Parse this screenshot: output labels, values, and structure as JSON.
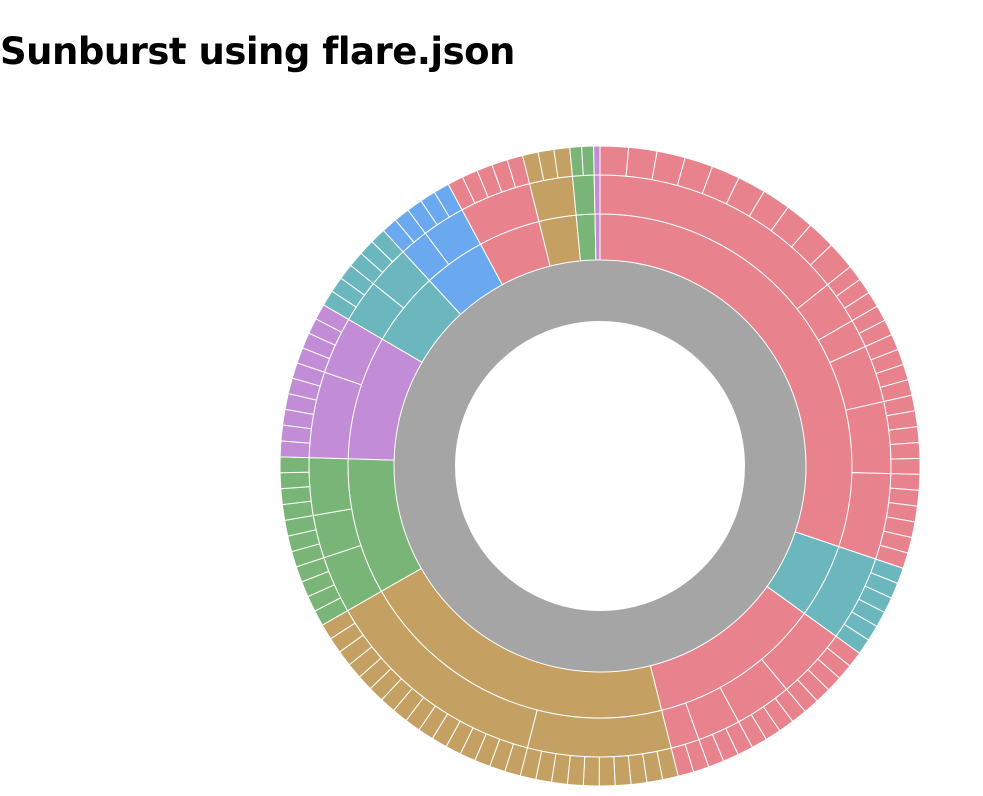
{
  "page": {
    "title": "Sunburst using flare.json"
  },
  "chart_data": {
    "type": "sunburst",
    "title": "Sunburst using flare.json",
    "center_color": "#a5a5a5",
    "root": {
      "name": "",
      "color": "#a5a5a5"
    },
    "categories": [
      {
        "name": "",
        "color": "#e8838d",
        "value": 38,
        "children": [
          {
            "name": "",
            "value": 18,
            "children": 10
          },
          {
            "name": "",
            "value": 3,
            "children": 3
          },
          {
            "name": "",
            "value": 2,
            "children": 2
          },
          {
            "name": "",
            "value": 4,
            "children": 4
          },
          {
            "name": "",
            "value": 5,
            "children": 5
          },
          {
            "name": "",
            "value": 6,
            "children": 6
          }
        ]
      },
      {
        "name": "",
        "color": "#6cb7bd",
        "value": 6,
        "children": [
          {
            "name": "",
            "value": 6,
            "children": 6
          }
        ]
      },
      {
        "name": "",
        "color": "#e8838d",
        "value": 14,
        "children": [
          {
            "name": "",
            "value": 5,
            "children": 5
          },
          {
            "name": "",
            "value": 4,
            "children": 4
          },
          {
            "name": "",
            "value": 3,
            "children": 3
          },
          {
            "name": "",
            "value": 2,
            "children": 2
          }
        ]
      },
      {
        "name": "",
        "color": "#c4a062",
        "value": 26,
        "children": [
          {
            "name": "",
            "value": 10,
            "children": 10
          },
          {
            "name": "",
            "value": 16,
            "children": 16
          }
        ]
      },
      {
        "name": "",
        "color": "#7ab578",
        "value": 11,
        "children": [
          {
            "name": "",
            "value": 4,
            "children": 4
          },
          {
            "name": "",
            "value": 3,
            "children": 3
          },
          {
            "name": "",
            "value": 4,
            "children": 4
          }
        ]
      },
      {
        "name": "",
        "color": "#c28cd6",
        "value": 10,
        "children": [
          {
            "name": "",
            "value": 6,
            "children": 6
          },
          {
            "name": "",
            "value": 4,
            "children": 4
          }
        ]
      },
      {
        "name": "",
        "color": "#6cb7bd",
        "value": 6,
        "children": [
          {
            "name": "",
            "value": 3,
            "children": 3
          },
          {
            "name": "",
            "value": 3,
            "children": 3
          }
        ]
      },
      {
        "name": "",
        "color": "#6aa8f0",
        "value": 5,
        "children": [
          {
            "name": "",
            "value": 2,
            "children": 2
          },
          {
            "name": "",
            "value": 3,
            "children": 3
          }
        ]
      },
      {
        "name": "",
        "color": "#e8838d",
        "value": 5,
        "children": [
          {
            "name": "",
            "value": 5,
            "children": 5
          }
        ]
      },
      {
        "name": "",
        "color": "#c4a062",
        "value": 3,
        "children": [
          {
            "name": "",
            "value": 3,
            "children": 3
          }
        ]
      },
      {
        "name": "",
        "color": "#7ab578",
        "value": 1.5,
        "children": [
          {
            "name": "",
            "value": 1.5,
            "children": 2
          }
        ]
      },
      {
        "name": "",
        "color": "#c28cd6",
        "value": 0.4,
        "children": [
          {
            "name": "",
            "value": 0.4,
            "children": 1
          }
        ]
      }
    ]
  }
}
